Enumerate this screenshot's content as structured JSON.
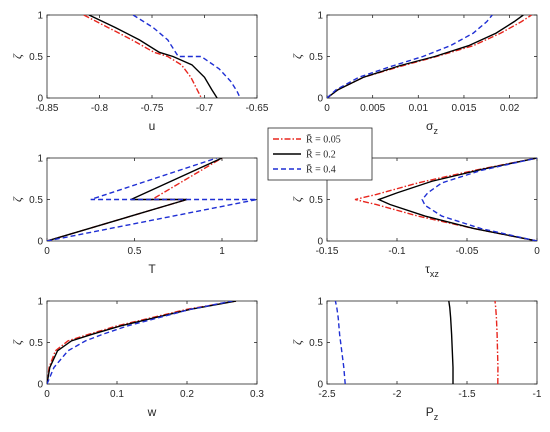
{
  "colors": {
    "series1": "#e8261e",
    "series2": "#000000",
    "series3": "#1f2fd4",
    "axis": "#262626"
  },
  "legend": {
    "entries": [
      {
        "label": "R̄ = 0.05",
        "style": "dashdot",
        "color": "#e8261e"
      },
      {
        "label": "R̄ = 0.2",
        "style": "solid",
        "color": "#000000"
      },
      {
        "label": "R̄ = 0.4",
        "style": "dashed",
        "color": "#1f2fd4"
      }
    ]
  },
  "chart_data": [
    {
      "type": "line",
      "xlabel": "u",
      "xlabel_sub": "",
      "ylabel": "ζ",
      "xlim": [
        -0.85,
        -0.65
      ],
      "ylim": [
        0,
        1
      ],
      "xticks": [
        -0.85,
        -0.8,
        -0.75,
        -0.7,
        -0.65
      ],
      "xtick_labels": [
        "-0.85",
        "-0.8",
        "-0.75",
        "-0.7",
        "-0.65"
      ],
      "yticks": [
        0,
        0.5,
        1
      ],
      "ytick_labels": [
        "0",
        "0.5",
        "1"
      ],
      "series": [
        {
          "style": "dashdot",
          "color": "#e8261e",
          "x": [
            -0.815,
            -0.792,
            -0.769,
            -0.748,
            -0.735,
            -0.722,
            -0.713,
            -0.707,
            -0.703
          ],
          "y": [
            1,
            0.85,
            0.7,
            0.55,
            0.5,
            0.4,
            0.25,
            0.1,
            0
          ]
        },
        {
          "style": "solid",
          "color": "#000000",
          "x": [
            -0.81,
            -0.785,
            -0.762,
            -0.743,
            -0.73,
            -0.712,
            -0.7,
            -0.693,
            -0.688
          ],
          "y": [
            1,
            0.85,
            0.7,
            0.55,
            0.5,
            0.4,
            0.25,
            0.1,
            0
          ]
        },
        {
          "style": "dashed",
          "color": "#1f2fd4",
          "x": [
            -0.768,
            -0.749,
            -0.735,
            -0.725,
            -0.703,
            -0.686,
            -0.675,
            -0.669,
            -0.666
          ],
          "y": [
            1,
            0.85,
            0.7,
            0.5,
            0.5,
            0.35,
            0.2,
            0.08,
            0
          ]
        }
      ]
    },
    {
      "type": "line",
      "xlabel": "σ",
      "xlabel_sub": "z",
      "ylabel": "ζ",
      "xlim": [
        0,
        0.023
      ],
      "ylim": [
        0,
        1
      ],
      "xticks": [
        0,
        0.005,
        0.01,
        0.015,
        0.02
      ],
      "xtick_labels": [
        "0",
        "0.005",
        "0.01",
        "0.015",
        "0.02"
      ],
      "yticks": [
        0,
        0.5,
        1
      ],
      "ytick_labels": [
        "0",
        "0.5",
        "1"
      ],
      "series": [
        {
          "style": "dashdot",
          "color": "#e8261e",
          "x": [
            0,
            0.0012,
            0.004,
            0.008,
            0.012,
            0.016,
            0.019,
            0.0213,
            0.0224
          ],
          "y": [
            0,
            0.1,
            0.25,
            0.38,
            0.5,
            0.63,
            0.78,
            0.92,
            1
          ]
        },
        {
          "style": "solid",
          "color": "#000000",
          "x": [
            0,
            0.0012,
            0.004,
            0.008,
            0.0118,
            0.0155,
            0.0185,
            0.0205,
            0.0215
          ],
          "y": [
            0,
            0.1,
            0.25,
            0.39,
            0.5,
            0.63,
            0.78,
            0.92,
            1
          ]
        },
        {
          "style": "dashed",
          "color": "#1f2fd4",
          "x": [
            0,
            0.001,
            0.0035,
            0.007,
            0.0105,
            0.0135,
            0.016,
            0.0175,
            0.0181
          ],
          "y": [
            0,
            0.1,
            0.25,
            0.38,
            0.5,
            0.63,
            0.78,
            0.92,
            1
          ]
        }
      ]
    },
    {
      "type": "line",
      "xlabel": "T",
      "xlabel_sub": "",
      "ylabel": "ζ",
      "xlim": [
        0,
        1.2
      ],
      "ylim": [
        0,
        1
      ],
      "xticks": [
        0,
        0.5,
        1
      ],
      "xtick_labels": [
        "0",
        "0.5",
        "1"
      ],
      "yticks": [
        0,
        0.5,
        1
      ],
      "ytick_labels": [
        "0",
        "0.5",
        "1"
      ],
      "series": [
        {
          "style": "dashdot",
          "color": "#e8261e",
          "x": [
            0,
            0.8,
            0.6,
            1.0
          ],
          "y": [
            0,
            0.5,
            0.5,
            1
          ]
        },
        {
          "style": "solid",
          "color": "#000000",
          "x": [
            0,
            0.8,
            0.48,
            1.0
          ],
          "y": [
            0,
            0.5,
            0.5,
            1
          ]
        },
        {
          "style": "dashed",
          "color": "#1f2fd4",
          "x": [
            0,
            1.2,
            0.25,
            0.97
          ],
          "y": [
            0,
            0.5,
            0.5,
            1
          ]
        }
      ]
    },
    {
      "type": "line",
      "xlabel": "τ",
      "xlabel_sub": "xz",
      "ylabel": "ζ",
      "xlim": [
        -0.15,
        0
      ],
      "ylim": [
        0,
        1
      ],
      "xticks": [
        -0.15,
        -0.1,
        -0.05,
        0
      ],
      "xtick_labels": [
        "-0.15",
        "-0.1",
        "-0.05",
        "0"
      ],
      "yticks": [
        0,
        0.5,
        1
      ],
      "ytick_labels": [
        "0",
        "0.5",
        "1"
      ],
      "series": [
        {
          "style": "dashdot",
          "color": "#e8261e",
          "x": [
            0,
            -0.045,
            -0.085,
            -0.115,
            -0.13,
            -0.115,
            -0.085,
            -0.045,
            0
          ],
          "y": [
            0,
            0.15,
            0.3,
            0.44,
            0.5,
            0.56,
            0.7,
            0.85,
            1
          ]
        },
        {
          "style": "solid",
          "color": "#000000",
          "x": [
            0,
            -0.045,
            -0.08,
            -0.105,
            -0.113,
            -0.1,
            -0.075,
            -0.04,
            0
          ],
          "y": [
            0,
            0.15,
            0.3,
            0.44,
            0.5,
            0.58,
            0.72,
            0.86,
            1
          ]
        },
        {
          "style": "dashed",
          "color": "#1f2fd4",
          "x": [
            0,
            -0.04,
            -0.068,
            -0.08,
            -0.082,
            -0.078,
            -0.068,
            -0.04,
            0
          ],
          "y": [
            0,
            0.15,
            0.3,
            0.43,
            0.5,
            0.58,
            0.7,
            0.85,
            1
          ]
        }
      ]
    },
    {
      "type": "line",
      "xlabel": "w",
      "xlabel_sub": "",
      "ylabel": "ζ",
      "xlim": [
        0,
        0.3
      ],
      "ylim": [
        0,
        1
      ],
      "xticks": [
        0,
        0.1,
        0.2,
        0.3
      ],
      "xtick_labels": [
        "0",
        "0.1",
        "0.2",
        "0.3"
      ],
      "yticks": [
        0,
        0.5,
        1
      ],
      "ytick_labels": [
        "0",
        "0.5",
        "1"
      ],
      "series": [
        {
          "style": "dashdot",
          "color": "#e8261e",
          "x": [
            0,
            0.003,
            0.012,
            0.03,
            0.06,
            0.1,
            0.15,
            0.2,
            0.27
          ],
          "y": [
            0,
            0.2,
            0.4,
            0.52,
            0.6,
            0.7,
            0.8,
            0.9,
            1
          ]
        },
        {
          "style": "solid",
          "color": "#000000",
          "x": [
            0,
            0.004,
            0.015,
            0.035,
            0.065,
            0.105,
            0.155,
            0.205,
            0.27
          ],
          "y": [
            0,
            0.2,
            0.4,
            0.52,
            0.6,
            0.7,
            0.8,
            0.9,
            1
          ]
        },
        {
          "style": "dashed",
          "color": "#1f2fd4",
          "x": [
            0,
            0.01,
            0.03,
            0.055,
            0.08,
            0.115,
            0.16,
            0.205,
            0.265
          ],
          "y": [
            0,
            0.2,
            0.4,
            0.52,
            0.6,
            0.7,
            0.8,
            0.9,
            1
          ]
        }
      ]
    },
    {
      "type": "line",
      "xlabel": "P",
      "xlabel_sub": "z",
      "ylabel": "ζ",
      "xlim": [
        -2.5,
        -1
      ],
      "ylim": [
        0,
        1
      ],
      "xticks": [
        -2.5,
        -2,
        -1.5,
        -1
      ],
      "xtick_labels": [
        "-2.5",
        "-2",
        "-1.5",
        "-1"
      ],
      "yticks": [
        0,
        0.5,
        1
      ],
      "ytick_labels": [
        "0",
        "0.5",
        "1"
      ],
      "series": [
        {
          "style": "dashdot",
          "color": "#e8261e",
          "x": [
            -1.28,
            -1.279,
            -1.282,
            -1.285,
            -1.29,
            -1.295,
            -1.3
          ],
          "y": [
            0,
            0.2,
            0.4,
            0.6,
            0.8,
            0.92,
            1
          ]
        },
        {
          "style": "solid",
          "color": "#000000",
          "x": [
            -1.6,
            -1.6,
            -1.605,
            -1.61,
            -1.617,
            -1.623,
            -1.63
          ],
          "y": [
            0,
            0.2,
            0.4,
            0.6,
            0.8,
            0.92,
            1
          ]
        },
        {
          "style": "dashed",
          "color": "#1f2fd4",
          "x": [
            -2.37,
            -2.38,
            -2.395,
            -2.41,
            -2.42,
            -2.43,
            -2.44
          ],
          "y": [
            0,
            0.2,
            0.4,
            0.6,
            0.8,
            0.92,
            1
          ]
        }
      ]
    }
  ]
}
